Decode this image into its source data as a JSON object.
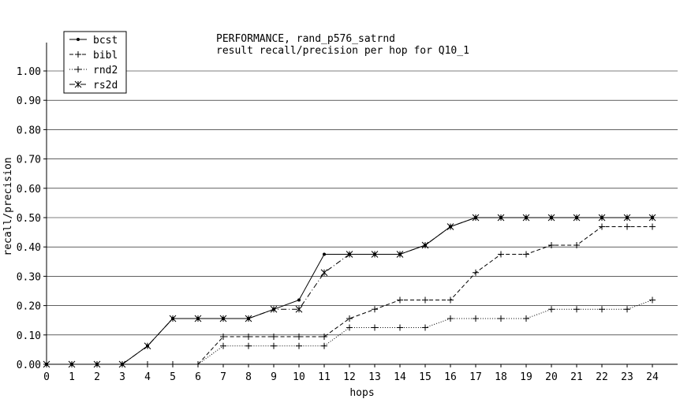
{
  "chart_data": {
    "type": "line",
    "title": "PERFORMANCE, rand_p576_satrnd",
    "subtitle": "result recall/precision per hop for Q10_1",
    "xlabel": "hops",
    "ylabel": "recall/precision",
    "xlim": [
      0,
      24
    ],
    "ylim": [
      0,
      1.05
    ],
    "x_ticks": [
      "0",
      "1",
      "2",
      "3",
      "4",
      "5",
      "6",
      "7",
      "8",
      "9",
      "10",
      "11",
      "12",
      "13",
      "14",
      "15",
      "16",
      "17",
      "18",
      "19",
      "20",
      "21",
      "22",
      "23",
      "24"
    ],
    "y_ticks": [
      "0.00",
      "0.10",
      "0.20",
      "0.30",
      "0.40",
      "0.50",
      "0.60",
      "0.70",
      "0.80",
      "0.90",
      "1.00"
    ],
    "grid": "horizontal",
    "legend_position": "top-left",
    "x": [
      0,
      1,
      2,
      3,
      4,
      5,
      6,
      7,
      8,
      9,
      10,
      11,
      12,
      13,
      14,
      15,
      16,
      17,
      18,
      19,
      20,
      21,
      22,
      23,
      24
    ],
    "series": [
      {
        "name": "bcst",
        "marker": "dot",
        "dash": "solid",
        "values": [
          0,
          0,
          0,
          0,
          0.0625,
          0.156,
          0.156,
          0.156,
          0.156,
          0.1875,
          0.219,
          0.375,
          0.375,
          0.375,
          0.375,
          0.406,
          0.469,
          0.5,
          0.5,
          0.5,
          0.5,
          0.5,
          0.5,
          0.5,
          0.5
        ]
      },
      {
        "name": "bibl",
        "marker": "plus",
        "dash": "dashed",
        "values": [
          0,
          0,
          0,
          0,
          0,
          0,
          0,
          0.094,
          0.094,
          0.094,
          0.094,
          0.094,
          0.156,
          0.1875,
          0.219,
          0.219,
          0.219,
          0.3125,
          0.375,
          0.375,
          0.406,
          0.406,
          0.469,
          0.469,
          0.469
        ]
      },
      {
        "name": "rnd2",
        "marker": "plus",
        "dash": "dotted",
        "values": [
          0,
          0,
          0,
          0,
          0,
          0,
          0,
          0.0625,
          0.0625,
          0.0625,
          0.0625,
          0.0625,
          0.125,
          0.125,
          0.125,
          0.125,
          0.156,
          0.156,
          0.156,
          0.156,
          0.1875,
          0.1875,
          0.1875,
          0.1875,
          0.219
        ]
      },
      {
        "name": "rs2d",
        "marker": "x",
        "dash": "dashdot",
        "values": [
          0,
          0,
          0,
          0,
          0.0625,
          0.156,
          0.156,
          0.156,
          0.156,
          0.1875,
          0.1875,
          0.3125,
          0.375,
          0.375,
          0.375,
          0.406,
          0.469,
          0.5,
          0.5,
          0.5,
          0.5,
          0.5,
          0.5,
          0.5,
          0.5
        ]
      }
    ]
  }
}
